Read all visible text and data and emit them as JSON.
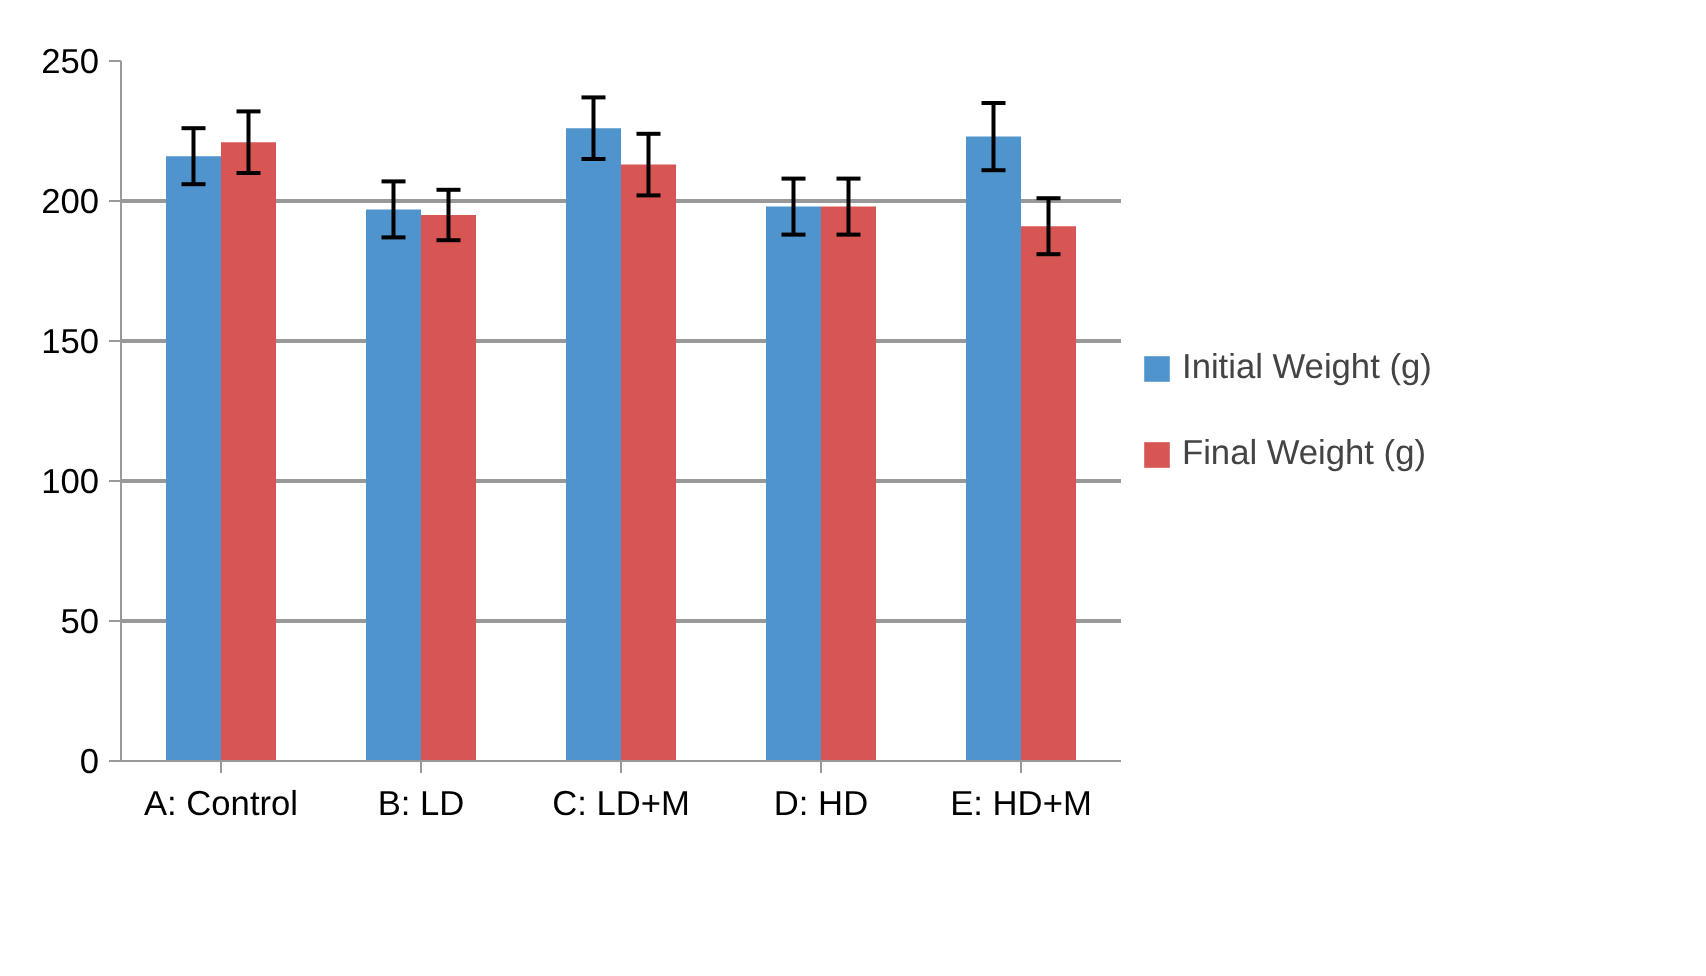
{
  "chart_data": {
    "type": "bar",
    "categories": [
      "A: Control",
      "B: LD",
      "C: LD+M",
      "D: HD",
      "E: HD+M"
    ],
    "series": [
      {
        "name": "Initial Weight (g)",
        "color": "#4f94cd",
        "values": [
          216,
          197,
          226,
          198,
          223
        ],
        "errors": [
          10,
          10,
          11,
          10,
          12
        ]
      },
      {
        "name": "Final Weight (g)",
        "color": "#d75653",
        "values": [
          221,
          195,
          213,
          198,
          191
        ],
        "errors": [
          11,
          9,
          11,
          10,
          10
        ]
      }
    ],
    "ylim": [
      0,
      250
    ],
    "yticks": [
      0,
      50,
      100,
      150,
      200,
      250
    ],
    "grid": "y",
    "legend": "right"
  }
}
